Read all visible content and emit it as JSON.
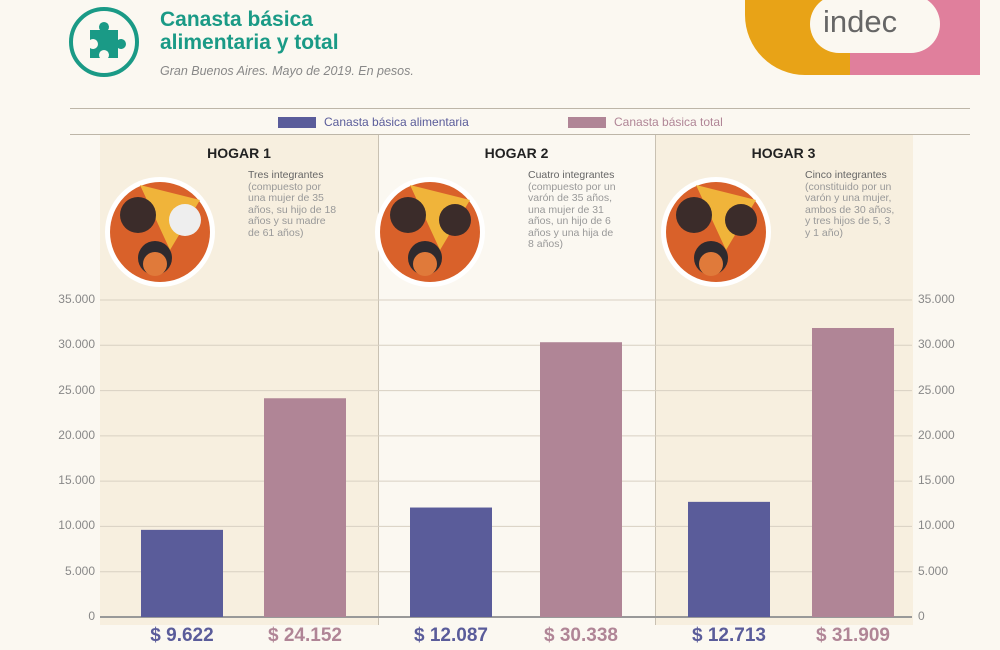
{
  "header": {
    "title_line1": "Canasta básica",
    "title_line2": "alimentaria y total",
    "subtitle": "Gran Buenos Aires. Mayo de 2019. En pesos.",
    "logo_text": "indec",
    "icon": "puzzle-icon"
  },
  "colors": {
    "accent": "#1a9a86",
    "alimentaria": "#5a5c9a",
    "total": "#b08596",
    "logo_orange": "#e8a317",
    "logo_pink": "#e07f9c"
  },
  "chart_data": {
    "type": "bar",
    "title": "Canasta básica alimentaria y total",
    "categories": [
      "HOGAR 1",
      "HOGAR 2",
      "HOGAR 3"
    ],
    "descriptions": [
      {
        "head": "Tres integrantes",
        "body": "(compuesto por una mujer de 35 años, su hijo de 18 años y su madre de 61 años)"
      },
      {
        "head": "Cuatro integrantes",
        "body": "(compuesto por un varón de 35 años, una mujer de 31 años, un hijo de 6 años y una hija de 8 años)"
      },
      {
        "head": "Cinco integrantes",
        "body": "(constituido por un varón y una mujer, ambos de 30 años, y tres hijos de 5, 3 y 1 año)"
      }
    ],
    "series": [
      {
        "name": "Canasta básica alimentaria",
        "values": [
          9622,
          12087,
          12713
        ],
        "labels": [
          "$ 9.622",
          "$ 12.087",
          "$ 12.713"
        ]
      },
      {
        "name": "Canasta básica total",
        "values": [
          24152,
          30338,
          31909
        ],
        "labels": [
          "$ 24.152",
          "$ 30.338",
          "$ 31.909"
        ]
      }
    ],
    "ylim": [
      0,
      35000
    ],
    "yticks": [
      "0",
      "5.000",
      "10.000",
      "15.000",
      "20.000",
      "25.000",
      "30.000",
      "35.000"
    ],
    "legend": "top-center",
    "grid": true
  }
}
